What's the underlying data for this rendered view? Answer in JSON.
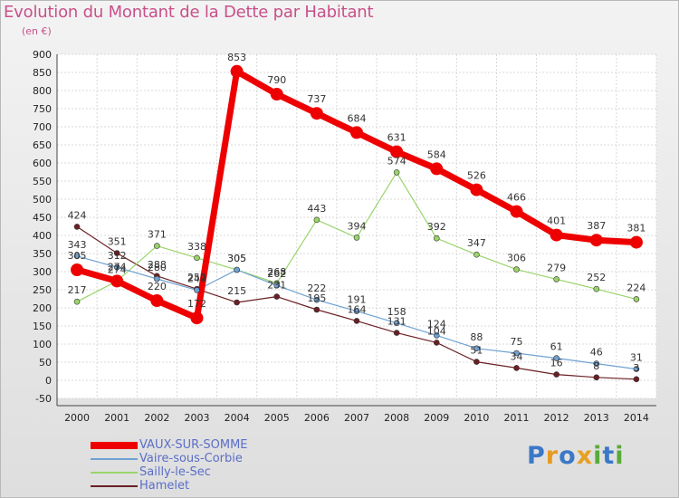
{
  "title": "Evolution du Montant de la Dette par Habitant",
  "unit": "(en €)",
  "logo": {
    "text": "Proxiti",
    "colors": [
      "#3a78c8",
      "#e89a20",
      "#3a78c8",
      "#e8a020",
      "#5aaa3a",
      "#3a78c8",
      "#5aaa3a"
    ]
  },
  "chart_data": {
    "type": "line",
    "x": [
      2000,
      2001,
      2002,
      2003,
      2004,
      2005,
      2006,
      2007,
      2008,
      2009,
      2010,
      2011,
      2012,
      2013,
      2014
    ],
    "ylim": [
      -50,
      900
    ],
    "yticks": [
      -50,
      0,
      50,
      100,
      150,
      200,
      250,
      300,
      350,
      400,
      450,
      500,
      550,
      600,
      650,
      700,
      750,
      800,
      850,
      900
    ],
    "grid": true,
    "legend_position": "bottom-left",
    "series": [
      {
        "name": "Hamelet",
        "color": "#6b1f24",
        "values": [
          424,
          351,
          288,
          252,
          215,
          231,
          195,
          164,
          131,
          104,
          51,
          34,
          16,
          8,
          3
        ]
      },
      {
        "name": "Sailly-le-Sec",
        "color": "#9ad46a",
        "values": [
          217,
          274,
          371,
          338,
          305,
          268,
          443,
          394,
          574,
          392,
          347,
          306,
          279,
          252,
          224
        ]
      },
      {
        "name": "Vaire-sous-Corbie",
        "color": "#6fa2d2",
        "values": [
          343,
          312,
          280,
          249,
          305,
          262,
          222,
          191,
          158,
          124,
          88,
          75,
          61,
          46,
          31
        ]
      },
      {
        "name": "VAUX-SUR-SOMME",
        "color": "#ee0000",
        "values": [
          305,
          274,
          220,
          172,
          853,
          790,
          737,
          684,
          631,
          584,
          526,
          466,
          401,
          387,
          381
        ]
      }
    ]
  }
}
